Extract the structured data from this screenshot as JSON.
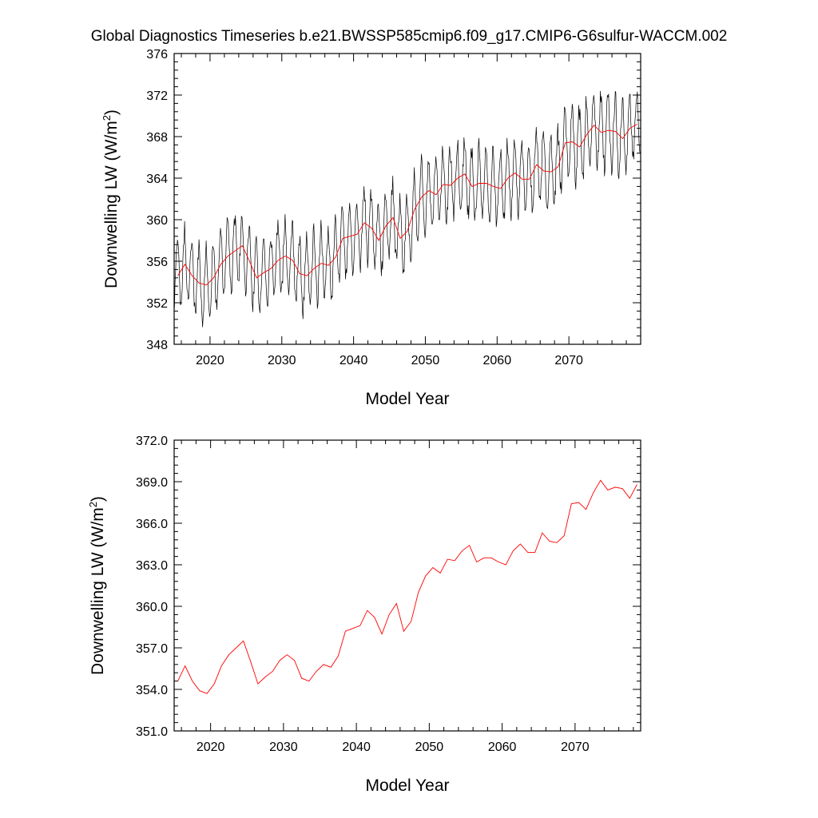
{
  "title": "Global Diagnostics Timeseries b.e21.BWSSP585cmip6.f09_g17.CMIP6-G6sulfur-WACCM.002",
  "colors": {
    "monthly": "#000000",
    "annual": "#ff0000",
    "frame": "#000000"
  },
  "chart_data": [
    {
      "type": "line",
      "xlabel": "Model Year",
      "ylabel": "Downwelling LW (W/m²)",
      "ylabel_base": "Downwelling LW (W/m",
      "ylabel_sup": "2",
      "ylabel_tail": ")",
      "xlim": [
        2015,
        2080
      ],
      "ylim": [
        348,
        376
      ],
      "xticks": [
        2020,
        2030,
        2040,
        2050,
        2060,
        2070
      ],
      "xtick_labels": [
        "2020",
        "2030",
        "2040",
        "2050",
        "2060",
        "2070"
      ],
      "yticks": [
        348,
        352,
        356,
        360,
        364,
        368,
        372,
        376
      ],
      "ytick_labels": [
        "348",
        "352",
        "356",
        "360",
        "364",
        "368",
        "372",
        "376"
      ],
      "grid": false,
      "series": [
        {
          "kind": "annual",
          "x": [
            2015.5,
            2016.5,
            2017.5,
            2018.5,
            2019.5,
            2020.5,
            2021.5,
            2022.5,
            2023.5,
            2024.5,
            2025.5,
            2026.5,
            2027.5,
            2028.5,
            2029.5,
            2030.5,
            2031.5,
            2032.5,
            2033.5,
            2034.5,
            2035.5,
            2036.5,
            2037.5,
            2038.5,
            2039.5,
            2040.5,
            2041.5,
            2042.5,
            2043.5,
            2044.5,
            2045.5,
            2046.5,
            2047.5,
            2048.5,
            2049.5,
            2050.5,
            2051.5,
            2052.5,
            2053.5,
            2054.5,
            2055.5,
            2056.5,
            2057.5,
            2058.5,
            2059.5,
            2060.5,
            2061.5,
            2062.5,
            2063.5,
            2064.5,
            2065.5,
            2066.5,
            2067.5,
            2068.5,
            2069.5,
            2070.5,
            2071.5,
            2072.5,
            2073.5,
            2074.5,
            2075.5,
            2076.5,
            2077.5,
            2078.5,
            2079.5
          ],
          "y": [
            354.6,
            355.7,
            354.6,
            353.9,
            353.7,
            354.4,
            355.7,
            356.5,
            357.0,
            357.5,
            356.0,
            354.4,
            354.9,
            355.3,
            356.1,
            356.5,
            356.1,
            354.8,
            354.6,
            355.3,
            355.8,
            355.6,
            356.4,
            358.2,
            358.4,
            358.6,
            359.7,
            359.2,
            358.0,
            359.4,
            360.2,
            358.2,
            358.9,
            361.0,
            362.2,
            362.8,
            362.4,
            363.4,
            363.3,
            364.0,
            364.4,
            363.2,
            363.5,
            363.5,
            363.2,
            363.0,
            364.0,
            364.5,
            363.9,
            363.9,
            365.3,
            364.7,
            364.6,
            365.1,
            367.4,
            367.5,
            367.0,
            368.2,
            369.1,
            368.4,
            368.6,
            368.5,
            367.8,
            368.8,
            369.2
          ]
        },
        {
          "kind": "monthly",
          "start_year": 2015.0,
          "step": 0.083333,
          "amplitude": 3.4,
          "noise": 1.0,
          "peak_phase": 0.45
        }
      ]
    },
    {
      "type": "line",
      "xlabel": "Model Year",
      "ylabel": "Downwelling LW (W/m²)",
      "ylabel_base": "Downwelling LW (W/m",
      "ylabel_sup": "2",
      "ylabel_tail": ")",
      "xlim": [
        2015,
        2079
      ],
      "ylim": [
        351,
        372
      ],
      "xticks": [
        2020,
        2030,
        2040,
        2050,
        2060,
        2070
      ],
      "xtick_labels": [
        "2020",
        "2030",
        "2040",
        "2050",
        "2060",
        "2070"
      ],
      "yticks": [
        351,
        354,
        357,
        360,
        363,
        366,
        369,
        372
      ],
      "ytick_labels": [
        "351.0",
        "354.0",
        "357.0",
        "360.0",
        "363.0",
        "366.0",
        "369.0",
        "372.0"
      ],
      "grid": false,
      "series": [
        {
          "kind": "annual",
          "x": [
            2015.5,
            2016.5,
            2017.5,
            2018.5,
            2019.5,
            2020.5,
            2021.5,
            2022.5,
            2023.5,
            2024.5,
            2025.5,
            2026.5,
            2027.5,
            2028.5,
            2029.5,
            2030.5,
            2031.5,
            2032.5,
            2033.5,
            2034.5,
            2035.5,
            2036.5,
            2037.5,
            2038.5,
            2039.5,
            2040.5,
            2041.5,
            2042.5,
            2043.5,
            2044.5,
            2045.5,
            2046.5,
            2047.5,
            2048.5,
            2049.5,
            2050.5,
            2051.5,
            2052.5,
            2053.5,
            2054.5,
            2055.5,
            2056.5,
            2057.5,
            2058.5,
            2059.5,
            2060.5,
            2061.5,
            2062.5,
            2063.5,
            2064.5,
            2065.5,
            2066.5,
            2067.5,
            2068.5,
            2069.5,
            2070.5,
            2071.5,
            2072.5,
            2073.5,
            2074.5,
            2075.5,
            2076.5,
            2077.5,
            2078.5
          ],
          "y": [
            354.6,
            355.7,
            354.6,
            353.9,
            353.7,
            354.4,
            355.7,
            356.5,
            357.0,
            357.5,
            356.0,
            354.4,
            354.9,
            355.3,
            356.1,
            356.5,
            356.1,
            354.8,
            354.6,
            355.3,
            355.8,
            355.6,
            356.4,
            358.2,
            358.4,
            358.6,
            359.7,
            359.2,
            358.0,
            359.4,
            360.2,
            358.2,
            358.9,
            361.0,
            362.2,
            362.8,
            362.4,
            363.4,
            363.3,
            364.0,
            364.4,
            363.2,
            363.5,
            363.5,
            363.2,
            363.0,
            364.0,
            364.5,
            363.9,
            363.9,
            365.3,
            364.7,
            364.6,
            365.1,
            367.4,
            367.5,
            367.0,
            368.2,
            369.1,
            368.4,
            368.6,
            368.5,
            367.8,
            368.8
          ]
        }
      ]
    }
  ]
}
